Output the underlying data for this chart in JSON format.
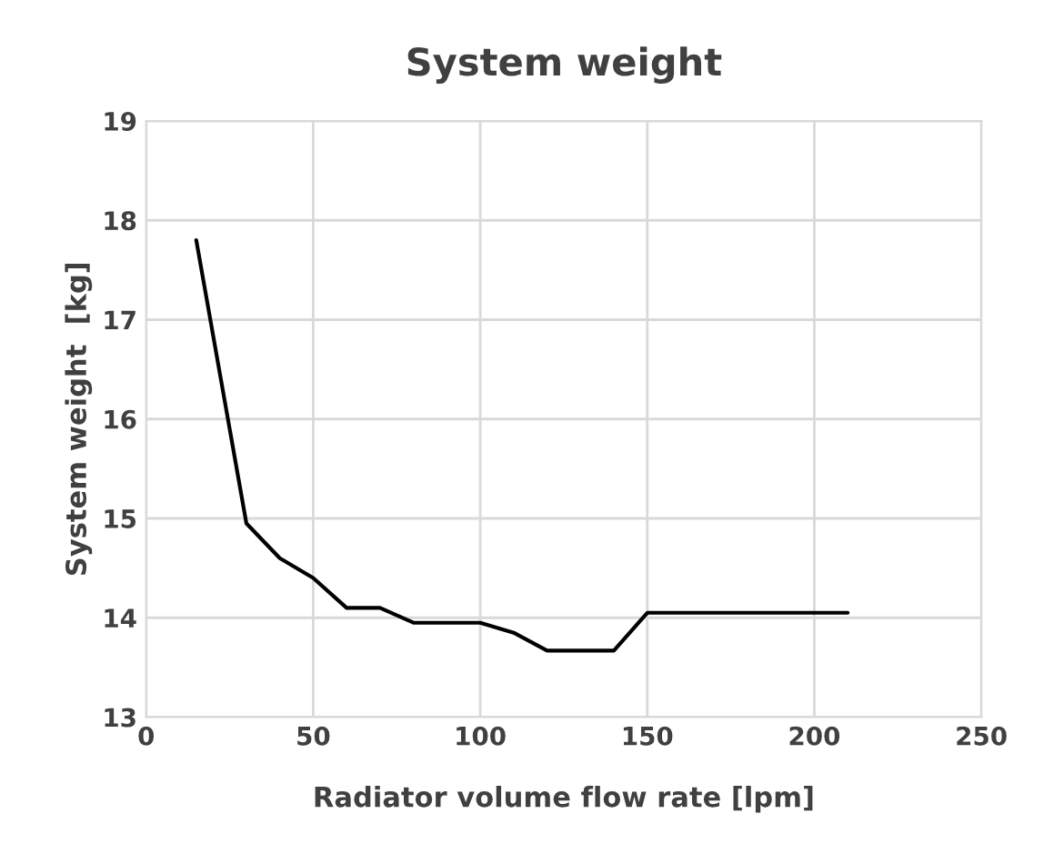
{
  "chart_data": {
    "type": "line",
    "title": "System weight",
    "xlabel": "Radiator volume flow rate [lpm]",
    "ylabel": "System weight  [kg]",
    "x": [
      15,
      30,
      40,
      50,
      60,
      70,
      80,
      100,
      110,
      120,
      140,
      150,
      210
    ],
    "series": [
      {
        "color": "#000000",
        "values": [
          17.8,
          14.95,
          14.6,
          14.4,
          14.1,
          14.1,
          13.95,
          13.95,
          13.85,
          13.67,
          13.67,
          14.05,
          14.05
        ]
      }
    ],
    "xlim": [
      0,
      250
    ],
    "xticks": [
      0,
      50,
      100,
      150,
      200,
      250
    ],
    "ylim": [
      13,
      19
    ],
    "yticks": [
      13,
      14,
      15,
      16,
      17,
      18,
      19
    ],
    "grid": true,
    "marker": "none",
    "line_style": "solid"
  }
}
